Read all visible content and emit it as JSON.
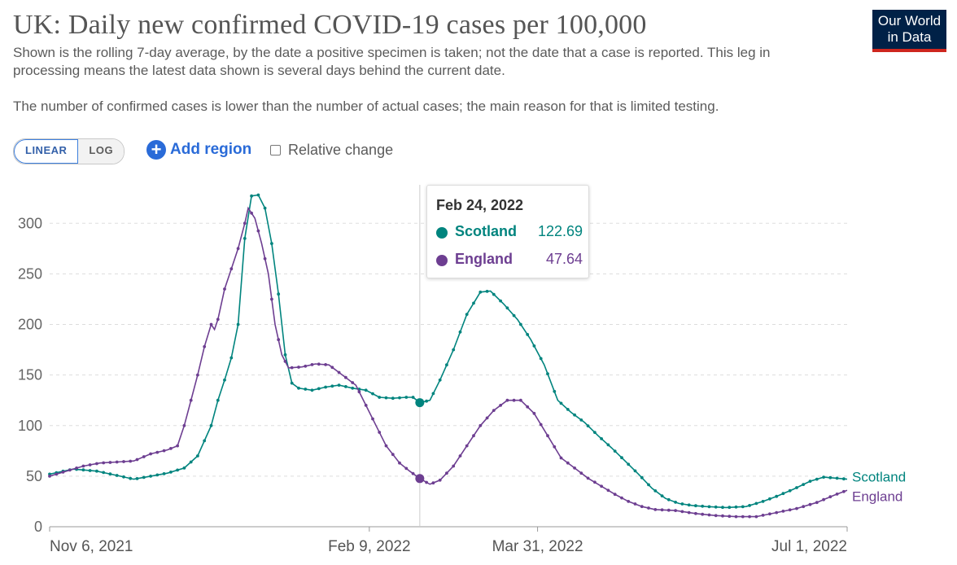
{
  "header": {
    "title": "UK: Daily new confirmed COVID-19 cases per 100,000",
    "subtitle_1": "Shown is the rolling 7-day average, by the date a positive specimen is taken; not the date that a case is reported. This leg in processing means the latest data shown is several days behind the current date.",
    "subtitle_2": "The number of confirmed cases is lower than the number of actual cases; the main reason for that is limited testing."
  },
  "logo": {
    "line1": "Our World",
    "line2": "in Data"
  },
  "controls": {
    "linear_label": "LINEAR",
    "log_label": "LOG",
    "add_region_label": "Add region",
    "relative_change_label": "Relative change"
  },
  "colors": {
    "scotland": "#00847e",
    "england": "#6d3e91",
    "grid": "#dddddd",
    "accent": "#2a6bd8"
  },
  "tooltip": {
    "date": "Feb 24, 2022",
    "rows": [
      {
        "name": "Scotland",
        "value": "122.69"
      },
      {
        "name": "England",
        "value": "47.64"
      }
    ]
  },
  "chart_data": {
    "type": "line",
    "x_start": "2021-11-06",
    "x_end": "2022-07-01",
    "x_tick_labels": [
      "Nov 6, 2021",
      "Feb 9, 2022",
      "Mar 31, 2022",
      "Jul 1, 2022"
    ],
    "x_tick_dates": [
      "2021-11-06",
      "2022-02-09",
      "2022-03-31",
      "2022-07-01"
    ],
    "ylim": [
      0,
      330
    ],
    "y_ticks": [
      0,
      50,
      100,
      150,
      200,
      250,
      300
    ],
    "grid": "horizontal dashed",
    "hover_date": "2022-02-24",
    "series": [
      {
        "name": "Scotland",
        "color": "#00847e",
        "points": [
          [
            "2021-11-06",
            52
          ],
          [
            "2021-11-13",
            57
          ],
          [
            "2021-11-20",
            55
          ],
          [
            "2021-11-27",
            50
          ],
          [
            "2021-12-01",
            47
          ],
          [
            "2021-12-06",
            50
          ],
          [
            "2021-12-11",
            53
          ],
          [
            "2021-12-16",
            58
          ],
          [
            "2021-12-20",
            70
          ],
          [
            "2021-12-24",
            100
          ],
          [
            "2021-12-26",
            125
          ],
          [
            "2021-12-28",
            145
          ],
          [
            "2021-12-30",
            167
          ],
          [
            "2022-01-01",
            200
          ],
          [
            "2022-01-03",
            285
          ],
          [
            "2022-01-05",
            327
          ],
          [
            "2022-01-07",
            328
          ],
          [
            "2022-01-09",
            315
          ],
          [
            "2022-01-11",
            280
          ],
          [
            "2022-01-13",
            230
          ],
          [
            "2022-01-15",
            170
          ],
          [
            "2022-01-17",
            142
          ],
          [
            "2022-01-19",
            137
          ],
          [
            "2022-01-23",
            135
          ],
          [
            "2022-01-27",
            138
          ],
          [
            "2022-01-31",
            140
          ],
          [
            "2022-02-04",
            137
          ],
          [
            "2022-02-08",
            135
          ],
          [
            "2022-02-12",
            128
          ],
          [
            "2022-02-16",
            127
          ],
          [
            "2022-02-20",
            128
          ],
          [
            "2022-02-22",
            128
          ],
          [
            "2022-02-24",
            122.69
          ],
          [
            "2022-02-27",
            125
          ],
          [
            "2022-03-02",
            145
          ],
          [
            "2022-03-06",
            175
          ],
          [
            "2022-03-10",
            210
          ],
          [
            "2022-03-14",
            232
          ],
          [
            "2022-03-17",
            233
          ],
          [
            "2022-03-21",
            220
          ],
          [
            "2022-03-25",
            205
          ],
          [
            "2022-03-29",
            185
          ],
          [
            "2022-04-02",
            160
          ],
          [
            "2022-04-06",
            125
          ],
          [
            "2022-04-10",
            113
          ],
          [
            "2022-04-14",
            103
          ],
          [
            "2022-04-18",
            90
          ],
          [
            "2022-04-22",
            78
          ],
          [
            "2022-04-26",
            65
          ],
          [
            "2022-04-30",
            52
          ],
          [
            "2022-05-04",
            38
          ],
          [
            "2022-05-08",
            28
          ],
          [
            "2022-05-12",
            23
          ],
          [
            "2022-05-16",
            21
          ],
          [
            "2022-05-20",
            20
          ],
          [
            "2022-05-26",
            19
          ],
          [
            "2022-06-01",
            20
          ],
          [
            "2022-06-06",
            25
          ],
          [
            "2022-06-10",
            30
          ],
          [
            "2022-06-15",
            37
          ],
          [
            "2022-06-20",
            45
          ],
          [
            "2022-06-24",
            49
          ],
          [
            "2022-06-28",
            48
          ],
          [
            "2022-07-01",
            47
          ]
        ]
      },
      {
        "name": "England",
        "color": "#6d3e91",
        "points": [
          [
            "2021-11-06",
            50
          ],
          [
            "2021-11-11",
            55
          ],
          [
            "2021-11-16",
            60
          ],
          [
            "2021-11-21",
            63
          ],
          [
            "2021-11-26",
            64
          ],
          [
            "2021-12-01",
            65
          ],
          [
            "2021-12-06",
            72
          ],
          [
            "2021-12-11",
            76
          ],
          [
            "2021-12-14",
            80
          ],
          [
            "2021-12-16",
            100
          ],
          [
            "2021-12-18",
            125
          ],
          [
            "2021-12-20",
            150
          ],
          [
            "2021-12-22",
            178
          ],
          [
            "2021-12-24",
            200
          ],
          [
            "2021-12-25",
            195
          ],
          [
            "2021-12-26",
            205
          ],
          [
            "2021-12-28",
            235
          ],
          [
            "2021-12-30",
            255
          ],
          [
            "2022-01-01",
            275
          ],
          [
            "2022-01-03",
            300
          ],
          [
            "2022-01-04",
            315
          ],
          [
            "2022-01-06",
            305
          ],
          [
            "2022-01-08",
            280
          ],
          [
            "2022-01-10",
            250
          ],
          [
            "2022-01-12",
            200
          ],
          [
            "2022-01-14",
            170
          ],
          [
            "2022-01-16",
            157
          ],
          [
            "2022-01-20",
            158
          ],
          [
            "2022-01-24",
            161
          ],
          [
            "2022-01-28",
            160
          ],
          [
            "2022-02-01",
            150
          ],
          [
            "2022-02-05",
            140
          ],
          [
            "2022-02-08",
            120
          ],
          [
            "2022-02-11",
            100
          ],
          [
            "2022-02-14",
            80
          ],
          [
            "2022-02-18",
            63
          ],
          [
            "2022-02-21",
            55
          ],
          [
            "2022-02-24",
            47.64
          ],
          [
            "2022-02-27",
            42
          ],
          [
            "2022-03-02",
            46
          ],
          [
            "2022-03-06",
            60
          ],
          [
            "2022-03-10",
            80
          ],
          [
            "2022-03-14",
            100
          ],
          [
            "2022-03-18",
            115
          ],
          [
            "2022-03-22",
            125
          ],
          [
            "2022-03-26",
            125
          ],
          [
            "2022-03-30",
            112
          ],
          [
            "2022-04-03",
            90
          ],
          [
            "2022-04-07",
            68
          ],
          [
            "2022-04-11",
            58
          ],
          [
            "2022-04-15",
            48
          ],
          [
            "2022-04-19",
            40
          ],
          [
            "2022-04-23",
            32
          ],
          [
            "2022-04-27",
            25
          ],
          [
            "2022-05-01",
            20
          ],
          [
            "2022-05-05",
            17
          ],
          [
            "2022-05-11",
            16
          ],
          [
            "2022-05-17",
            13
          ],
          [
            "2022-05-23",
            11
          ],
          [
            "2022-05-29",
            10
          ],
          [
            "2022-06-04",
            10
          ],
          [
            "2022-06-10",
            14
          ],
          [
            "2022-06-16",
            18
          ],
          [
            "2022-06-22",
            24
          ],
          [
            "2022-06-27",
            31
          ],
          [
            "2022-07-01",
            36
          ]
        ]
      }
    ]
  }
}
